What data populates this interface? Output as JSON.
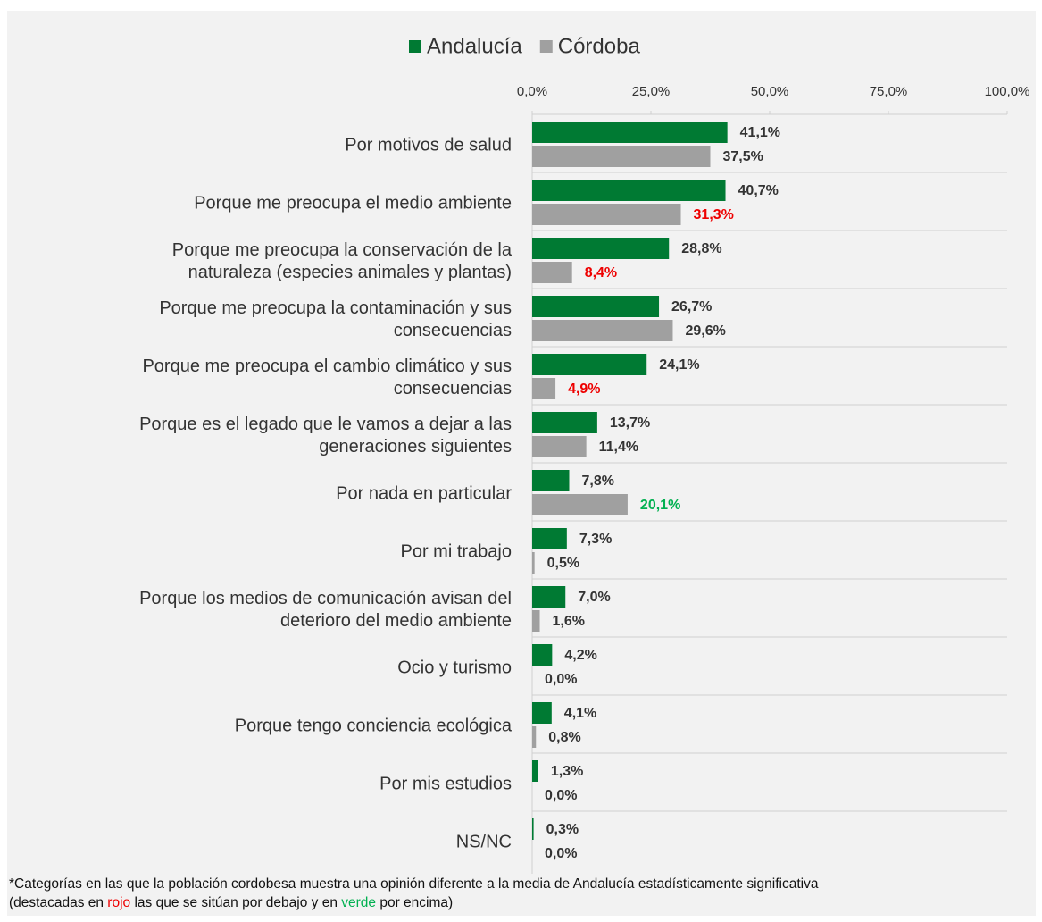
{
  "chart_data": {
    "type": "bar",
    "orientation": "horizontal",
    "categories": [
      "Por motivos de salud",
      "Porque me preocupa el medio ambiente",
      "Porque me preocupa la conservación de la\nnaturaleza (especies animales y plantas)",
      "Porque me preocupa la contaminación y sus\nconsecuencias",
      "Porque me preocupa el cambio climático y sus\nconsecuencias",
      "Porque es el legado que le vamos a dejar a las\ngeneraciones siguientes",
      "Por nada en particular",
      "Por mi trabajo",
      "Porque los medios de comunicación avisan del\ndeterioro del medio ambiente",
      "Ocio y turismo",
      "Porque tengo conciencia ecológica",
      "Por mis estudios",
      "NS/NC"
    ],
    "series": [
      {
        "name": "Andalucía",
        "color": "#007a33",
        "values": [
          41.1,
          40.7,
          28.8,
          26.7,
          24.1,
          13.7,
          7.8,
          7.3,
          7.0,
          4.2,
          4.1,
          1.3,
          0.3
        ],
        "value_labels": [
          "41,1%",
          "40,7%",
          "28,8%",
          "26,7%",
          "24,1%",
          "13,7%",
          "7,8%",
          "7,3%",
          "7,0%",
          "4,2%",
          "4,1%",
          "1,3%",
          "0,3%"
        ],
        "label_colors": [
          "#333333",
          "#333333",
          "#333333",
          "#333333",
          "#333333",
          "#333333",
          "#333333",
          "#333333",
          "#333333",
          "#333333",
          "#333333",
          "#333333",
          "#333333"
        ]
      },
      {
        "name": "Córdoba",
        "color": "#a0a0a0",
        "values": [
          37.5,
          31.3,
          8.4,
          29.6,
          4.9,
          11.4,
          20.1,
          0.5,
          1.6,
          0.0,
          0.8,
          0.0,
          0.0
        ],
        "value_labels": [
          "37,5%",
          "31,3%",
          "8,4%",
          "29,6%",
          "4,9%",
          "11,4%",
          "20,1%",
          "0,5%",
          "1,6%",
          "0,0%",
          "0,8%",
          "0,0%",
          "0,0%"
        ],
        "label_colors": [
          "#333333",
          "#ee0000",
          "#ee0000",
          "#333333",
          "#ee0000",
          "#333333",
          "#00b050",
          "#333333",
          "#333333",
          "#333333",
          "#333333",
          "#333333",
          "#333333"
        ]
      }
    ],
    "xlim": [
      0,
      100
    ],
    "xticks": [
      {
        "value": 0,
        "label": "0,0%"
      },
      {
        "value": 25,
        "label": "25,0%"
      },
      {
        "value": 50,
        "label": "50,0%"
      },
      {
        "value": 75,
        "label": "75,0%"
      },
      {
        "value": 100,
        "label": "100,0%"
      }
    ],
    "legend": "top",
    "footnote": [
      "*Categorías en las que la población cordobesa muestra una opinión diferente a la media de Andalucía estadísticamente significativa",
      "(destacadas en ",
      "rojo",
      " las que se sitúan por debajo y en ",
      "verde",
      " por encima)"
    ],
    "footnote_colors": [
      "#111111",
      "#111111",
      "#ee0000",
      "#111111",
      "#00b050",
      "#111111"
    ]
  }
}
